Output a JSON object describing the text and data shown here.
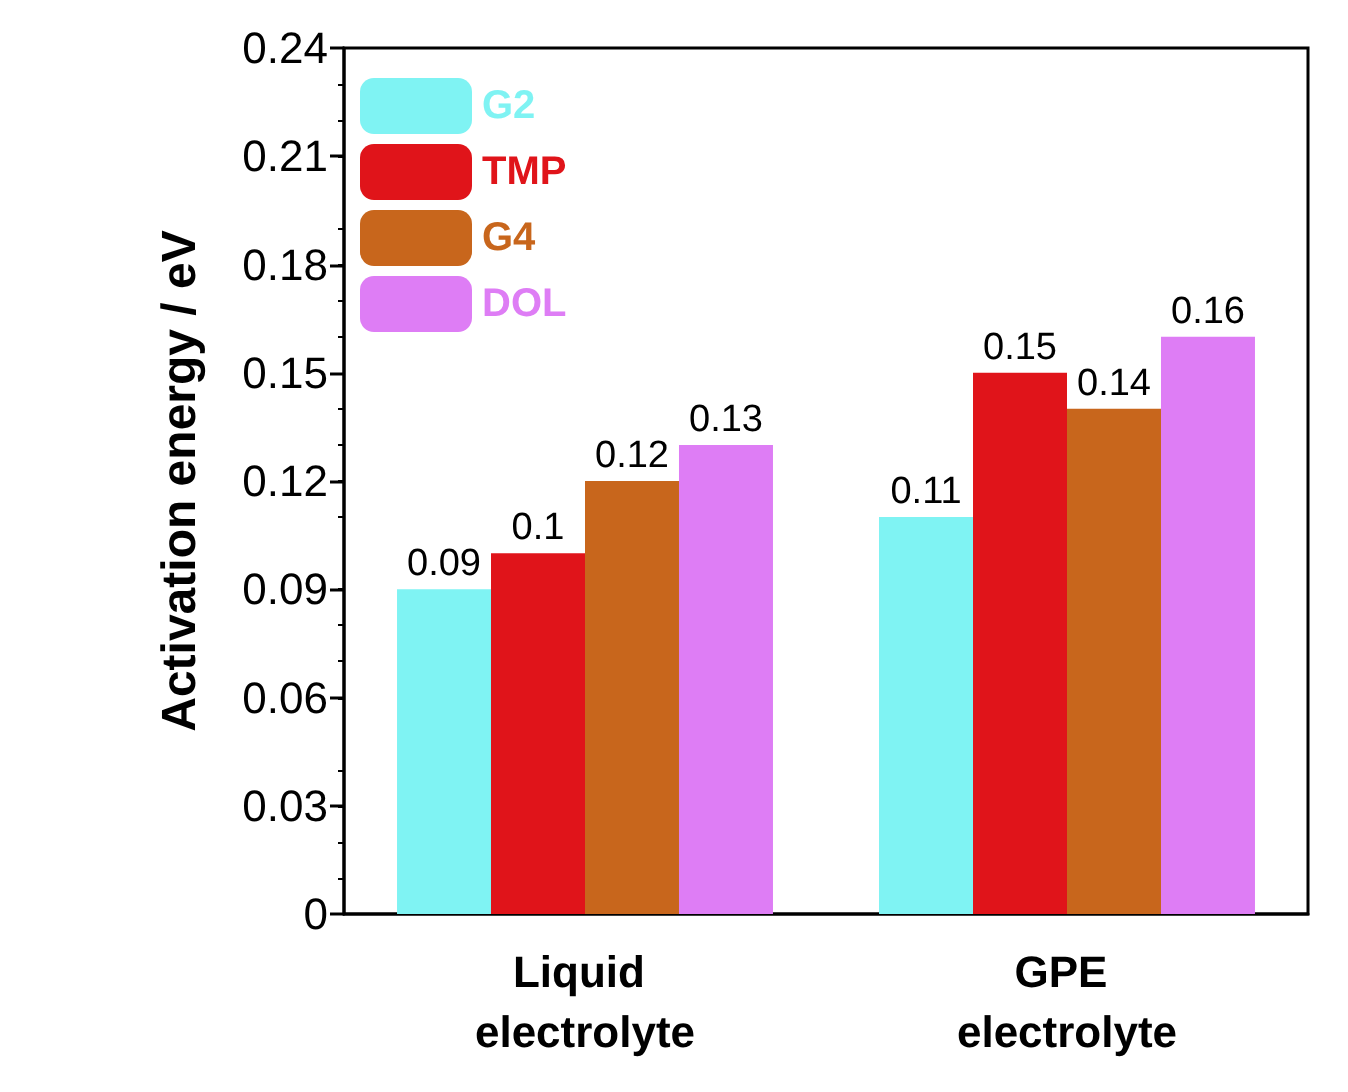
{
  "chart_data": {
    "type": "bar",
    "ylabel": "Activation energy / eV",
    "categories": [
      "Liquid electrolyte",
      "GPE electrolyte"
    ],
    "series": [
      {
        "name": "G2",
        "color": "#7ff3f3",
        "values": [
          0.09,
          0.11
        ]
      },
      {
        "name": "TMP",
        "color": "#e0141a",
        "values": [
          0.1,
          0.15
        ]
      },
      {
        "name": "G4",
        "color": "#c8661c",
        "values": [
          0.12,
          0.14
        ]
      },
      {
        "name": "DOL",
        "color": "#de7df5",
        "values": [
          0.13,
          0.16
        ]
      }
    ],
    "ylim": [
      0,
      0.24
    ],
    "yticks": [
      0,
      0.03,
      0.06,
      0.09,
      0.12,
      0.15,
      0.18,
      0.21,
      0.24
    ],
    "data_labels": true,
    "legend": "top left",
    "grid": false
  }
}
